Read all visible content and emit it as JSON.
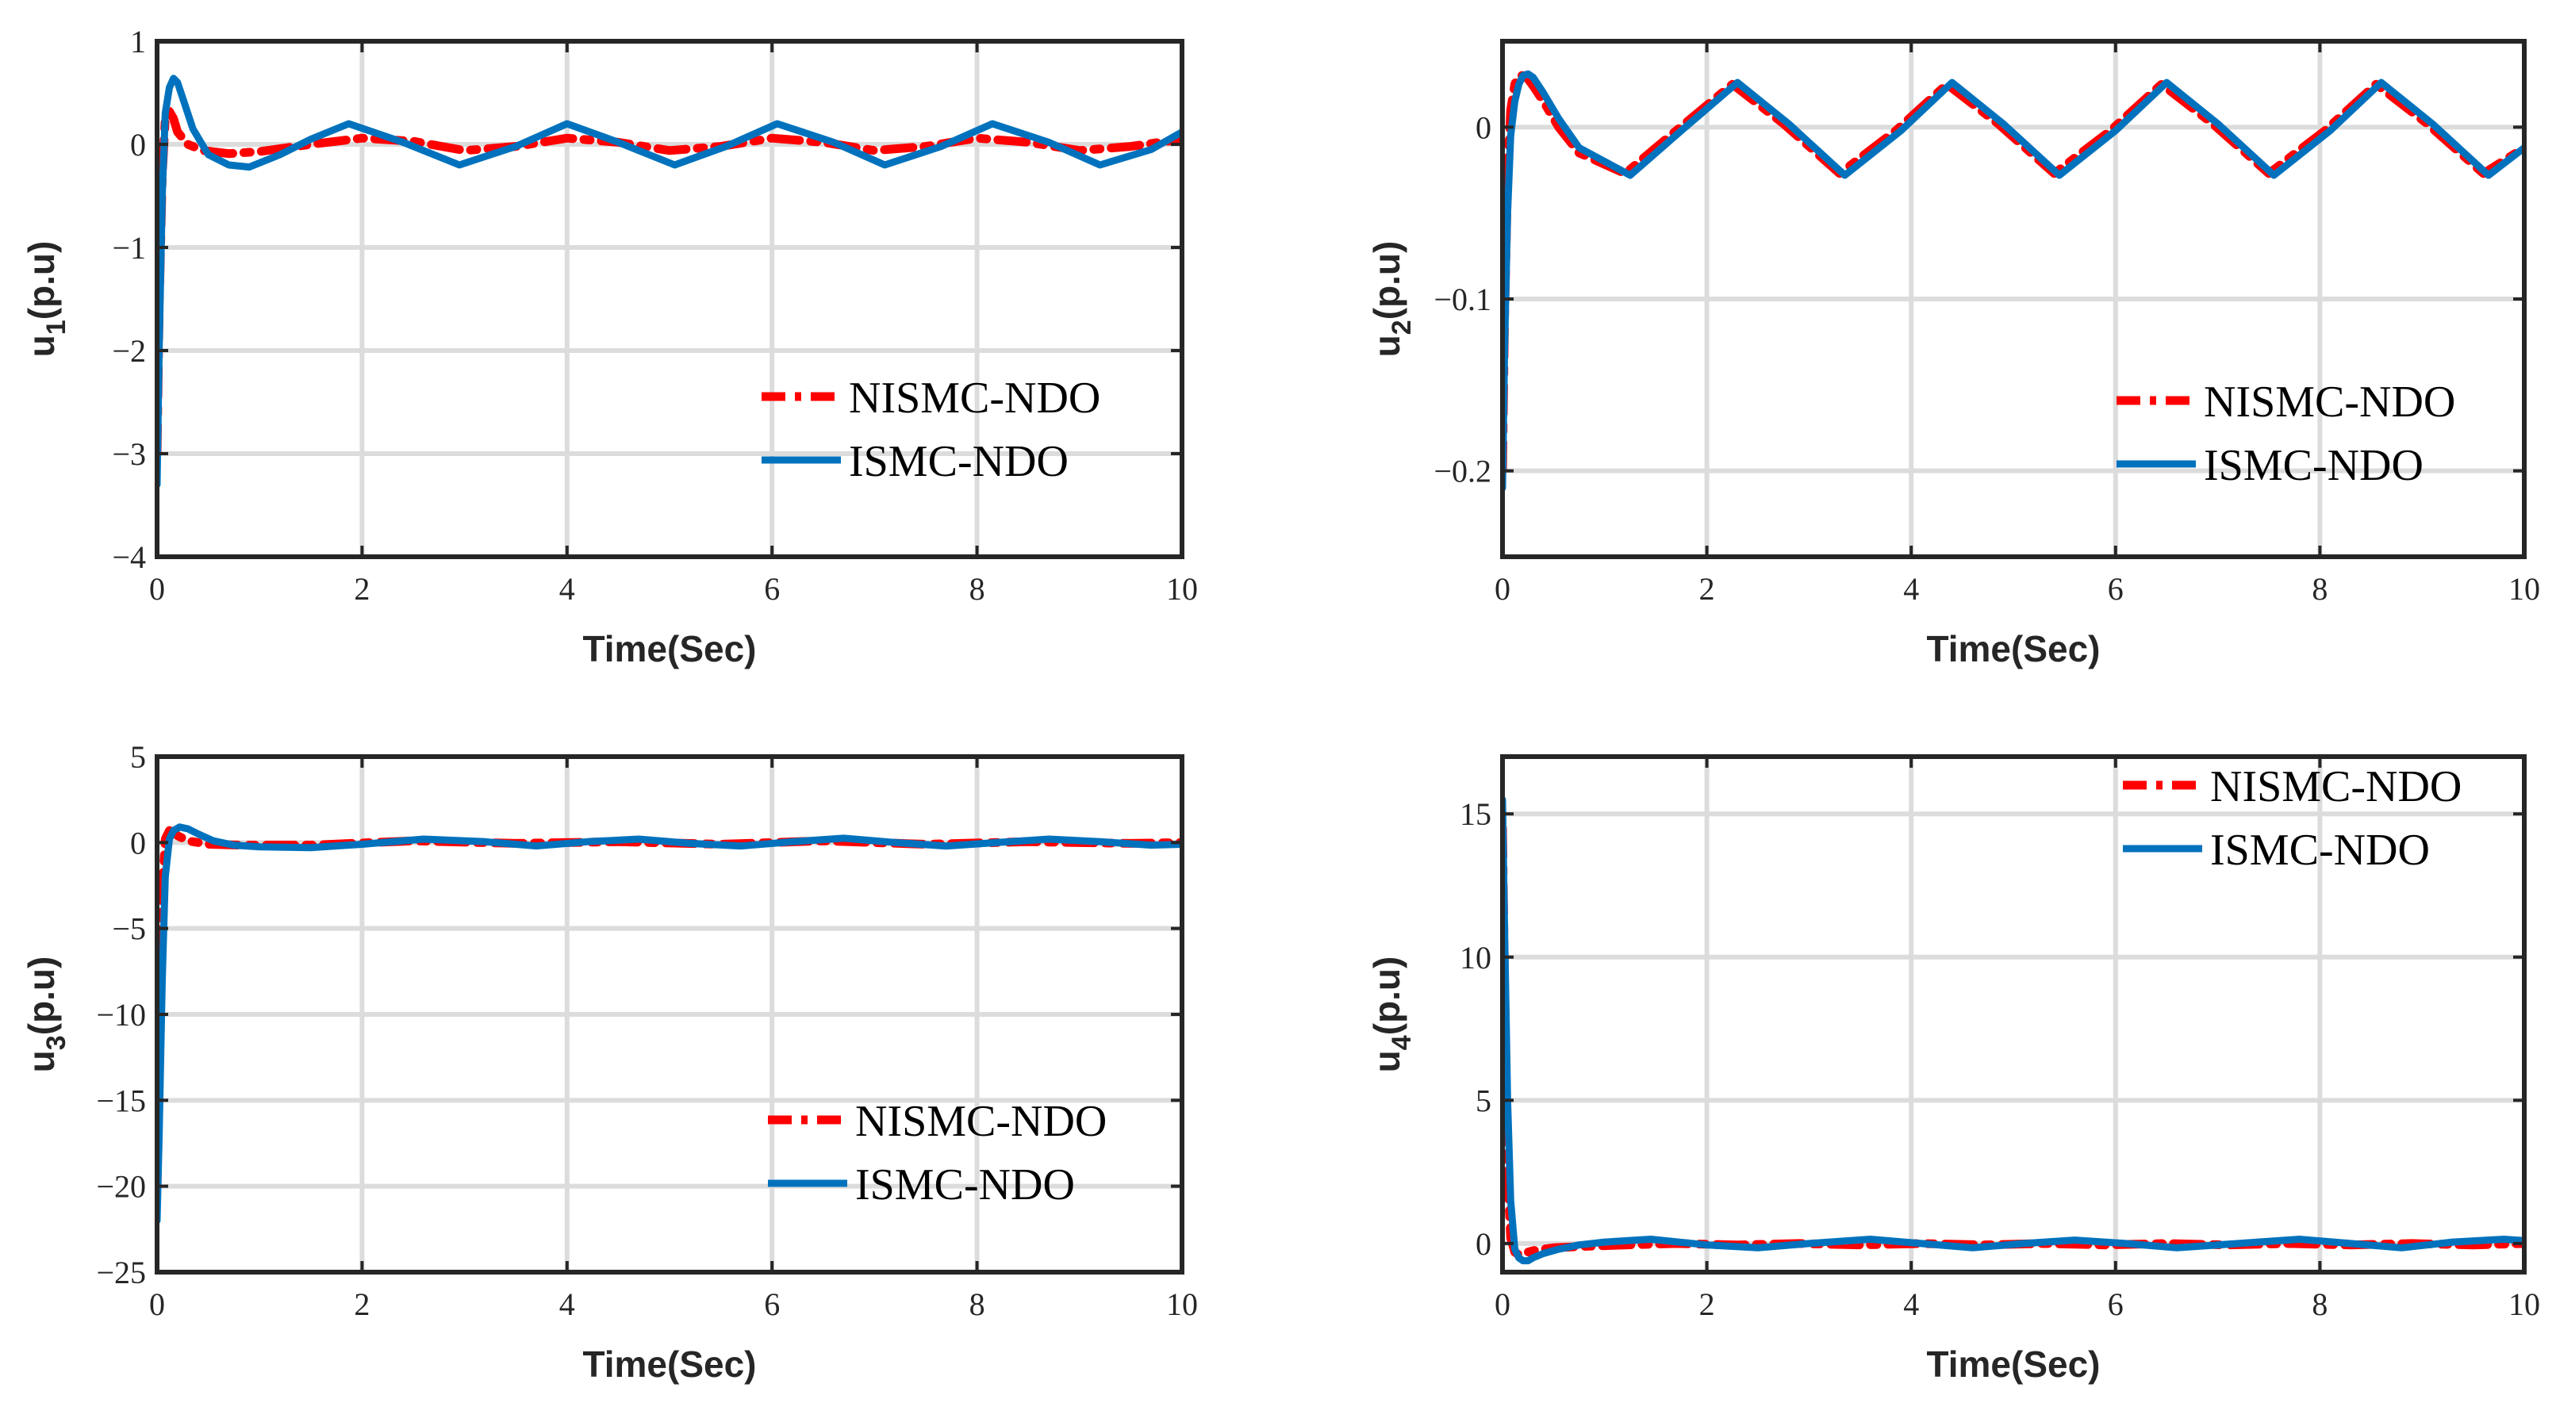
{
  "chart_data": [
    {
      "type": "line",
      "ylabel_main": "u",
      "ylabel_sub": "1",
      "ylabel_unit": "(p.u)",
      "xlabel": "Time(Sec)",
      "xlim": [
        0,
        10
      ],
      "ylim": [
        -4,
        1
      ],
      "xticks": [
        0,
        2,
        4,
        6,
        8,
        10
      ],
      "yticks": [
        -4,
        -3,
        -2,
        -1,
        0,
        1
      ],
      "xtick_labels": [
        "0",
        "2",
        "4",
        "6",
        "8",
        "10"
      ],
      "ytick_labels": [
        "−4",
        "−3",
        "−2",
        "−1",
        "0",
        "1"
      ],
      "grid": true,
      "legend_position": "bottom-right",
      "series": [
        {
          "name": "NISMC-NDO",
          "style": "dashdot",
          "color": "#ff0000",
          "x": [
            0,
            0.02,
            0.05,
            0.08,
            0.12,
            0.16,
            0.2,
            0.3,
            0.45,
            0.7,
            1.0,
            1.5,
            2.0,
            2.5,
            3.0,
            3.5,
            4.0,
            4.5,
            5.0,
            5.5,
            6.0,
            6.5,
            7.0,
            7.5,
            8.0,
            8.5,
            9.0,
            9.5,
            10.0
          ],
          "values": [
            -3.0,
            -1.6,
            -0.3,
            0.25,
            0.32,
            0.25,
            0.12,
            0.0,
            -0.06,
            -0.09,
            -0.07,
            0.0,
            0.06,
            0.03,
            -0.06,
            -0.02,
            0.06,
            0.02,
            -0.06,
            -0.02,
            0.06,
            0.02,
            -0.06,
            -0.02,
            0.06,
            0.02,
            -0.06,
            -0.02,
            0.05
          ]
        },
        {
          "name": "ISMC-NDO",
          "style": "solid",
          "color": "#0072bd",
          "x": [
            0,
            0.02,
            0.05,
            0.08,
            0.12,
            0.16,
            0.2,
            0.25,
            0.35,
            0.5,
            0.7,
            0.9,
            1.2,
            1.5,
            1.87,
            2.4,
            2.95,
            3.5,
            4.0,
            4.5,
            5.05,
            5.55,
            6.05,
            6.6,
            7.1,
            7.65,
            8.15,
            8.7,
            9.2,
            9.7,
            10.0
          ],
          "values": [
            -3.3,
            -2.0,
            -0.5,
            0.3,
            0.55,
            0.64,
            0.6,
            0.45,
            0.15,
            -0.1,
            -0.2,
            -0.22,
            -0.1,
            0.05,
            0.2,
            0.02,
            -0.2,
            -0.02,
            0.2,
            0.02,
            -0.2,
            -0.02,
            0.2,
            0.02,
            -0.2,
            -0.02,
            0.2,
            0.02,
            -0.2,
            -0.05,
            0.12
          ]
        }
      ]
    },
    {
      "type": "line",
      "ylabel_main": "u",
      "ylabel_sub": "2",
      "ylabel_unit": "(p.u)",
      "xlabel": "Time(Sec)",
      "xlim": [
        0,
        10
      ],
      "ylim": [
        -0.25,
        0.05
      ],
      "xticks": [
        0,
        2,
        4,
        6,
        8,
        10
      ],
      "yticks": [
        -0.2,
        -0.1,
        0
      ],
      "xtick_labels": [
        "0",
        "2",
        "4",
        "6",
        "8",
        "10"
      ],
      "ytick_labels": [
        "−0.2",
        "−0.1",
        "0"
      ],
      "grid": true,
      "legend_position": "bottom-right",
      "series": [
        {
          "name": "NISMC-NDO",
          "style": "dashdot",
          "color": "#ff0000",
          "x": [
            0,
            0.02,
            0.05,
            0.08,
            0.12,
            0.16,
            0.2,
            0.25,
            0.3,
            0.4,
            0.55,
            0.75,
            1.2,
            1.7,
            2.25,
            2.75,
            3.3,
            3.85,
            4.35,
            4.85,
            5.4,
            5.95,
            6.45,
            6.95,
            7.5,
            8.05,
            8.55,
            9.05,
            9.6,
            10.0
          ],
          "values": [
            -0.2,
            -0.11,
            -0.03,
            0.01,
            0.025,
            0.03,
            0.03,
            0.028,
            0.024,
            0.015,
            0.0,
            -0.015,
            -0.027,
            -0.002,
            0.025,
            0.002,
            -0.027,
            -0.002,
            0.025,
            0.002,
            -0.027,
            -0.002,
            0.025,
            0.002,
            -0.027,
            -0.002,
            0.025,
            0.002,
            -0.027,
            -0.012
          ]
        },
        {
          "name": "ISMC-NDO",
          "style": "solid",
          "color": "#0072bd",
          "x": [
            0,
            0.02,
            0.05,
            0.08,
            0.12,
            0.16,
            0.2,
            0.25,
            0.3,
            0.4,
            0.55,
            0.75,
            1.25,
            1.75,
            2.3,
            2.8,
            3.35,
            3.9,
            4.4,
            4.9,
            5.45,
            6.0,
            6.5,
            7.0,
            7.55,
            8.1,
            8.6,
            9.1,
            9.65,
            10.0
          ],
          "values": [
            -0.21,
            -0.13,
            -0.05,
            -0.005,
            0.015,
            0.025,
            0.03,
            0.031,
            0.029,
            0.02,
            0.005,
            -0.012,
            -0.028,
            -0.002,
            0.026,
            0.002,
            -0.028,
            -0.002,
            0.026,
            0.002,
            -0.028,
            -0.002,
            0.026,
            0.002,
            -0.028,
            -0.002,
            0.026,
            0.002,
            -0.028,
            -0.012
          ]
        }
      ]
    },
    {
      "type": "line",
      "ylabel_main": "u",
      "ylabel_sub": "3",
      "ylabel_unit": "(p.u)",
      "xlabel": "Time(Sec)",
      "xlim": [
        0,
        10
      ],
      "ylim": [
        -25,
        5
      ],
      "xticks": [
        0,
        2,
        4,
        6,
        8,
        10
      ],
      "yticks": [
        -25,
        -20,
        -15,
        -10,
        -5,
        0,
        5
      ],
      "xtick_labels": [
        "0",
        "2",
        "4",
        "6",
        "8",
        "10"
      ],
      "ytick_labels": [
        "−25",
        "−20",
        "−15",
        "−10",
        "−5",
        "0",
        "5"
      ],
      "grid": true,
      "legend_position": "bottom-right",
      "series": [
        {
          "name": "NISMC-NDO",
          "style": "dashdot",
          "color": "#ff0000",
          "x": [
            0,
            0.02,
            0.05,
            0.08,
            0.12,
            0.16,
            0.2,
            0.3,
            0.5,
            0.8,
            1.5,
            2.5,
            3.5,
            4.5,
            5.5,
            6.5,
            7.5,
            8.5,
            9.5,
            10.0
          ],
          "values": [
            -20.0,
            -12.0,
            -3.0,
            0.2,
            0.7,
            0.6,
            0.4,
            0.1,
            -0.1,
            -0.15,
            -0.15,
            0.1,
            -0.05,
            0.05,
            -0.1,
            0.1,
            -0.1,
            0.05,
            -0.05,
            0.0
          ]
        },
        {
          "name": "ISMC-NDO",
          "style": "solid",
          "color": "#0072bd",
          "x": [
            0,
            0.02,
            0.05,
            0.08,
            0.12,
            0.16,
            0.22,
            0.3,
            0.4,
            0.55,
            0.75,
            1.0,
            1.5,
            2.0,
            2.6,
            3.2,
            3.7,
            4.2,
            4.7,
            5.2,
            5.7,
            6.2,
            6.7,
            7.2,
            7.7,
            8.2,
            8.7,
            9.2,
            9.7,
            10.0
          ],
          "values": [
            -22.0,
            -17.0,
            -8.0,
            -2.0,
            0.2,
            0.7,
            0.9,
            0.8,
            0.5,
            0.1,
            -0.15,
            -0.25,
            -0.3,
            -0.1,
            0.2,
            0.05,
            -0.2,
            0.05,
            0.2,
            -0.05,
            -0.2,
            0.05,
            0.25,
            0.0,
            -0.2,
            0.0,
            0.2,
            0.05,
            -0.15,
            -0.1
          ]
        }
      ]
    },
    {
      "type": "line",
      "ylabel_main": "u",
      "ylabel_sub": "4",
      "ylabel_unit": "(p.u)",
      "xlabel": "Time(Sec)",
      "xlim": [
        0,
        10
      ],
      "ylim": [
        -1,
        17
      ],
      "xticks": [
        0,
        2,
        4,
        6,
        8,
        10
      ],
      "yticks": [
        0,
        5,
        10,
        15
      ],
      "xtick_labels": [
        "0",
        "2",
        "4",
        "6",
        "8",
        "10"
      ],
      "ytick_labels": [
        "0",
        "5",
        "10",
        "15"
      ],
      "grid": true,
      "legend_position": "top-right",
      "series": [
        {
          "name": "NISMC-NDO",
          "style": "dashdot",
          "color": "#ff0000",
          "x": [
            0,
            0.02,
            0.05,
            0.08,
            0.12,
            0.16,
            0.2,
            0.3,
            0.5,
            0.8,
            1.2,
            1.7,
            2.3,
            2.9,
            3.5,
            4.1,
            4.7,
            5.3,
            5.9,
            6.5,
            7.1,
            7.7,
            8.3,
            8.9,
            9.5,
            10.0
          ],
          "values": [
            14.5,
            9.0,
            2.5,
            0.2,
            -0.3,
            -0.4,
            -0.35,
            -0.25,
            -0.15,
            -0.1,
            -0.05,
            0.0,
            -0.05,
            0.0,
            -0.05,
            0.0,
            -0.05,
            0.0,
            -0.05,
            0.0,
            -0.05,
            0.0,
            -0.05,
            0.0,
            -0.05,
            0.0
          ]
        },
        {
          "name": "ISMC-NDO",
          "style": "solid",
          "color": "#0072bd",
          "x": [
            0,
            0.02,
            0.05,
            0.08,
            0.12,
            0.16,
            0.2,
            0.25,
            0.3,
            0.4,
            0.55,
            0.75,
            1.0,
            1.45,
            2.0,
            2.5,
            3.0,
            3.6,
            4.1,
            4.6,
            5.1,
            5.6,
            6.1,
            6.6,
            7.2,
            7.8,
            8.3,
            8.8,
            9.3,
            9.8,
            10.0
          ],
          "values": [
            15.5,
            11.0,
            5.0,
            1.5,
            -0.2,
            -0.5,
            -0.6,
            -0.6,
            -0.5,
            -0.35,
            -0.2,
            -0.05,
            0.05,
            0.15,
            -0.05,
            -0.15,
            0.0,
            0.15,
            0.0,
            -0.15,
            0.0,
            0.12,
            0.0,
            -0.15,
            0.0,
            0.15,
            0.0,
            -0.15,
            0.05,
            0.15,
            0.1
          ]
        }
      ]
    }
  ]
}
